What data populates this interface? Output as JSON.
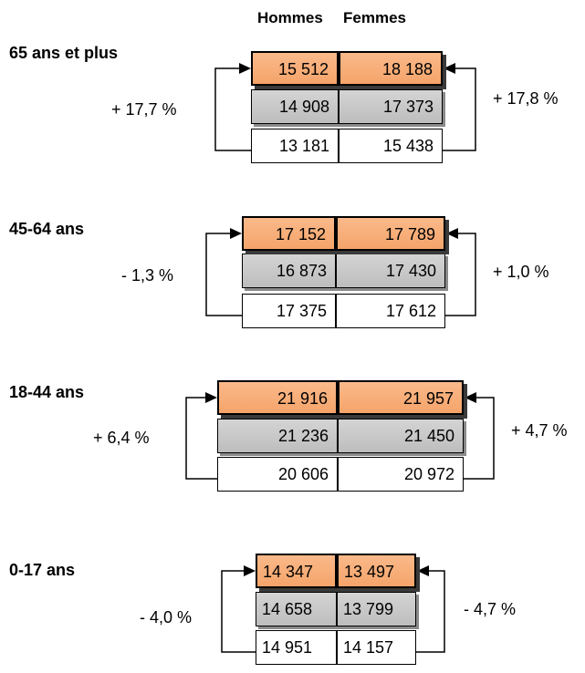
{
  "headers": {
    "men": "Hommes",
    "women": "Femmes"
  },
  "chart_data": {
    "type": "table",
    "columns": [
      "Hommes",
      "Femmes"
    ],
    "groups": [
      {
        "label": "65 ans et plus",
        "rows": [
          [
            "15 512",
            "18 188"
          ],
          [
            "14 908",
            "17 373"
          ],
          [
            "13 181",
            "15 438"
          ]
        ],
        "change_men": "+ 17,7 %",
        "change_women": "+ 17,8 %"
      },
      {
        "label": "45-64 ans",
        "rows": [
          [
            "17 152",
            "17 789"
          ],
          [
            "16 873",
            "17 430"
          ],
          [
            "17 375",
            "17 612"
          ]
        ],
        "change_men": "- 1,3 %",
        "change_women": "+ 1,0 %"
      },
      {
        "label": "18-44 ans",
        "rows": [
          [
            "21 916",
            "21 957"
          ],
          [
            "21 236",
            "21 450"
          ],
          [
            "20 606",
            "20 972"
          ]
        ],
        "change_men": "+ 6,4 %",
        "change_women": "+ 4,7 %"
      },
      {
        "label": "0-17 ans",
        "rows": [
          [
            "14 347",
            "13 497"
          ],
          [
            "14 658",
            "13 799"
          ],
          [
            "14 951",
            "14 157"
          ]
        ],
        "change_men": "- 4,0 %",
        "change_women": "- 4,7 %"
      }
    ]
  },
  "colors": {
    "recent": "#f7ab74",
    "middle": "#c6c6c6",
    "oldest": "#ffffff",
    "border": "#000000"
  }
}
